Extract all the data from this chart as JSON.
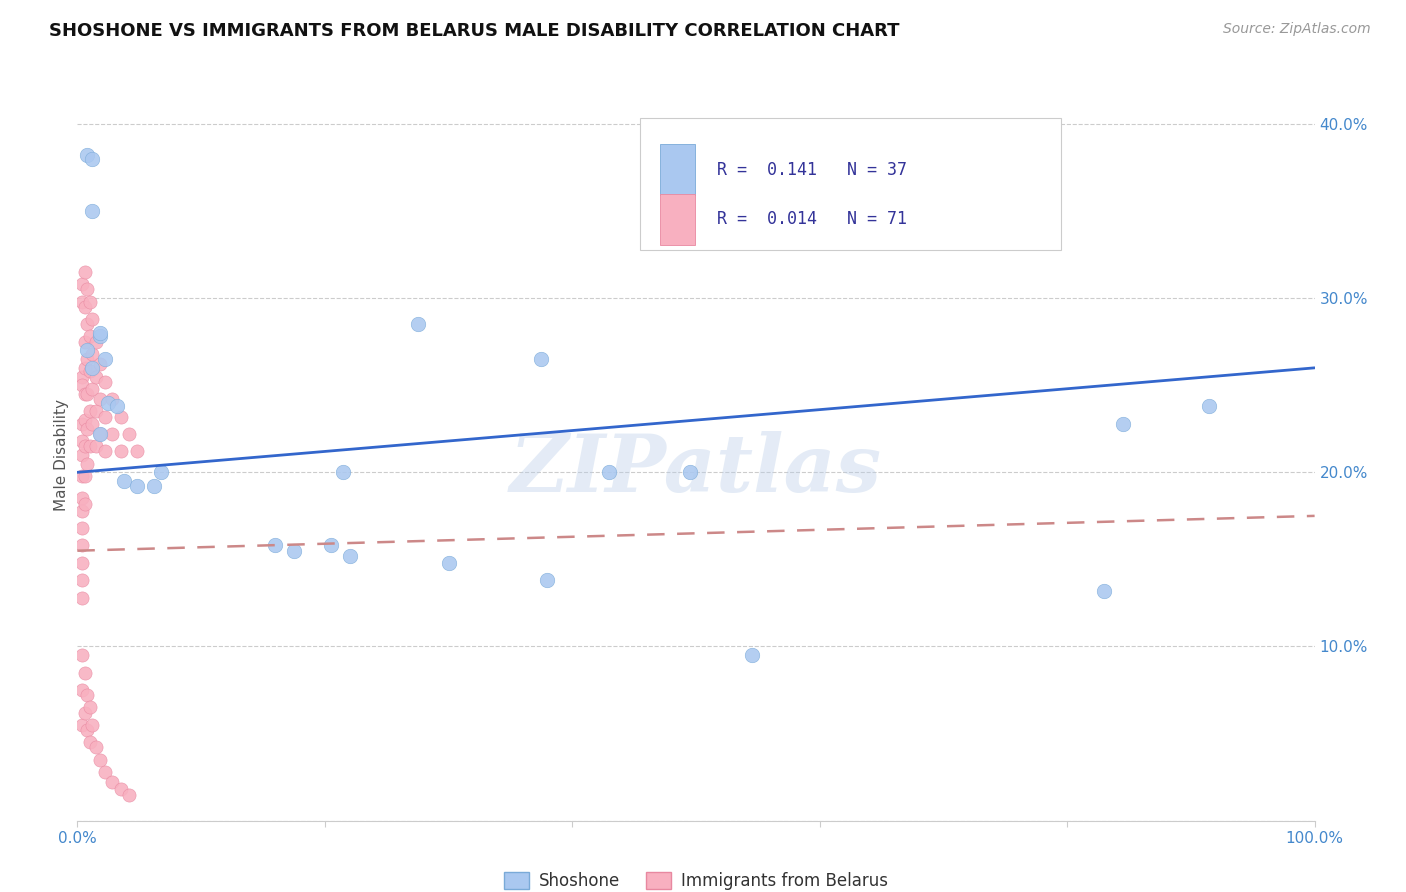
{
  "title": "SHOSHONE VS IMMIGRANTS FROM BELARUS MALE DISABILITY CORRELATION CHART",
  "source": "Source: ZipAtlas.com",
  "ylabel": "Male Disability",
  "xlim": [
    0,
    1.0
  ],
  "ylim": [
    0,
    0.42
  ],
  "shoshone_color": "#aac8f0",
  "shoshone_edge": "#7aaad8",
  "belarus_color": "#f8b0c0",
  "belarus_edge": "#e888a0",
  "line_blue": "#3366cc",
  "line_pink": "#cc8888",
  "watermark": "ZIPatlas",
  "background": "#ffffff",
  "shoshone_x": [
    0.008,
    0.012,
    0.008,
    0.012,
    0.018,
    0.022,
    0.012,
    0.018,
    0.018,
    0.025,
    0.032,
    0.038,
    0.048,
    0.062,
    0.068,
    0.16,
    0.175,
    0.205,
    0.215,
    0.22,
    0.275,
    0.3,
    0.375,
    0.38,
    0.43,
    0.495,
    0.545,
    0.83,
    0.845,
    0.915
  ],
  "shoshone_y": [
    0.382,
    0.38,
    0.27,
    0.35,
    0.278,
    0.265,
    0.26,
    0.28,
    0.222,
    0.24,
    0.238,
    0.195,
    0.192,
    0.192,
    0.2,
    0.158,
    0.155,
    0.158,
    0.2,
    0.152,
    0.285,
    0.148,
    0.265,
    0.138,
    0.2,
    0.2,
    0.095,
    0.132,
    0.228,
    0.238
  ],
  "belarus_x": [
    0.004,
    0.004,
    0.004,
    0.004,
    0.004,
    0.004,
    0.004,
    0.004,
    0.004,
    0.004,
    0.004,
    0.004,
    0.004,
    0.004,
    0.004,
    0.006,
    0.006,
    0.006,
    0.006,
    0.006,
    0.006,
    0.006,
    0.006,
    0.006,
    0.008,
    0.008,
    0.008,
    0.008,
    0.008,
    0.008,
    0.01,
    0.01,
    0.01,
    0.01,
    0.01,
    0.012,
    0.012,
    0.012,
    0.012,
    0.015,
    0.015,
    0.015,
    0.015,
    0.018,
    0.018,
    0.018,
    0.022,
    0.022,
    0.022,
    0.028,
    0.028,
    0.035,
    0.035,
    0.042,
    0.048,
    0.004,
    0.004,
    0.004,
    0.006,
    0.006,
    0.008,
    0.008,
    0.01,
    0.01,
    0.012,
    0.015,
    0.018,
    0.022,
    0.028,
    0.035,
    0.042
  ],
  "belarus_y": [
    0.308,
    0.298,
    0.255,
    0.25,
    0.228,
    0.218,
    0.21,
    0.198,
    0.185,
    0.178,
    0.168,
    0.158,
    0.148,
    0.138,
    0.128,
    0.315,
    0.295,
    0.275,
    0.26,
    0.245,
    0.23,
    0.215,
    0.198,
    0.182,
    0.305,
    0.285,
    0.265,
    0.245,
    0.225,
    0.205,
    0.298,
    0.278,
    0.258,
    0.235,
    0.215,
    0.288,
    0.268,
    0.248,
    0.228,
    0.275,
    0.255,
    0.235,
    0.215,
    0.262,
    0.242,
    0.222,
    0.252,
    0.232,
    0.212,
    0.242,
    0.222,
    0.232,
    0.212,
    0.222,
    0.212,
    0.095,
    0.075,
    0.055,
    0.085,
    0.062,
    0.072,
    0.052,
    0.065,
    0.045,
    0.055,
    0.042,
    0.035,
    0.028,
    0.022,
    0.018,
    0.015
  ],
  "shoshone_line_x": [
    0.0,
    1.0
  ],
  "shoshone_line_y": [
    0.2,
    0.26
  ],
  "belarus_line_x": [
    0.0,
    1.0
  ],
  "belarus_line_y": [
    0.155,
    0.175
  ]
}
